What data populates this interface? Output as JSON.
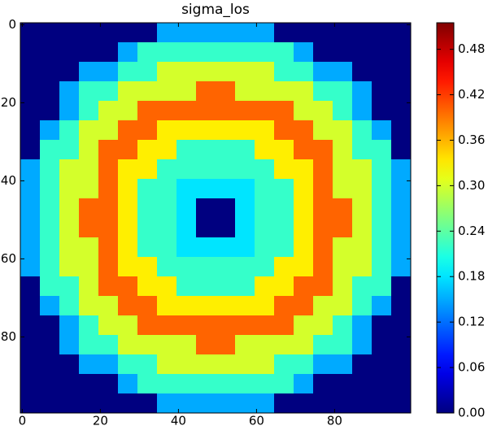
{
  "chart_data": {
    "type": "heatmap",
    "title": "sigma_los",
    "colormap": "jet",
    "xlim": [
      -0.5,
      99.5
    ],
    "ylim": [
      99.5,
      -0.5
    ],
    "xticks": [
      0,
      20,
      40,
      60,
      80
    ],
    "yticks": [
      0,
      20,
      40,
      60,
      80
    ],
    "clim": [
      0,
      0.515
    ],
    "cticks": [
      {
        "value": 0,
        "label": "0.00"
      },
      {
        "value": 0.06,
        "label": "0.06"
      },
      {
        "value": 0.12,
        "label": "0.12"
      },
      {
        "value": 0.18,
        "label": "0.18"
      },
      {
        "value": 0.24,
        "label": "0.24"
      },
      {
        "value": 0.3,
        "label": "0.30"
      },
      {
        "value": 0.36,
        "label": "0.36"
      },
      {
        "value": 0.42,
        "label": "0.42"
      },
      {
        "value": 0.48,
        "label": "0.48"
      }
    ],
    "z": [
      [
        0,
        0,
        0,
        0,
        0,
        0,
        0,
        0.15,
        0.15,
        0.15,
        0.15,
        0.15,
        0.15,
        0,
        0,
        0,
        0,
        0,
        0,
        0
      ],
      [
        0,
        0,
        0,
        0,
        0,
        0.15,
        0.22,
        0.22,
        0.22,
        0.22,
        0.22,
        0.22,
        0.22,
        0.22,
        0.15,
        0,
        0,
        0,
        0,
        0
      ],
      [
        0,
        0,
        0,
        0.15,
        0.15,
        0.22,
        0.22,
        0.3,
        0.3,
        0.3,
        0.3,
        0.3,
        0.3,
        0.22,
        0.22,
        0.15,
        0.15,
        0,
        0,
        0
      ],
      [
        0,
        0,
        0.15,
        0.22,
        0.22,
        0.3,
        0.3,
        0.3,
        0.3,
        0.4,
        0.4,
        0.3,
        0.3,
        0.3,
        0.3,
        0.22,
        0.22,
        0.15,
        0,
        0
      ],
      [
        0,
        0,
        0.15,
        0.22,
        0.3,
        0.3,
        0.4,
        0.4,
        0.4,
        0.4,
        0.4,
        0.4,
        0.4,
        0.4,
        0.3,
        0.3,
        0.22,
        0.15,
        0,
        0
      ],
      [
        0,
        0.15,
        0.22,
        0.3,
        0.3,
        0.4,
        0.4,
        0.33,
        0.33,
        0.33,
        0.33,
        0.33,
        0.33,
        0.4,
        0.4,
        0.3,
        0.3,
        0.22,
        0.15,
        0
      ],
      [
        0,
        0.22,
        0.22,
        0.3,
        0.4,
        0.4,
        0.33,
        0.33,
        0.22,
        0.22,
        0.22,
        0.22,
        0.33,
        0.33,
        0.4,
        0.4,
        0.3,
        0.22,
        0.22,
        0
      ],
      [
        0.15,
        0.22,
        0.3,
        0.3,
        0.4,
        0.33,
        0.33,
        0.22,
        0.22,
        0.22,
        0.22,
        0.22,
        0.22,
        0.33,
        0.33,
        0.4,
        0.3,
        0.3,
        0.22,
        0.15
      ],
      [
        0.15,
        0.22,
        0.3,
        0.3,
        0.4,
        0.33,
        0.22,
        0.22,
        0.18,
        0.18,
        0.18,
        0.18,
        0.22,
        0.22,
        0.33,
        0.4,
        0.3,
        0.3,
        0.22,
        0.15
      ],
      [
        0.15,
        0.22,
        0.3,
        0.4,
        0.4,
        0.33,
        0.22,
        0.22,
        0.18,
        0,
        0,
        0.18,
        0.22,
        0.22,
        0.33,
        0.4,
        0.4,
        0.3,
        0.22,
        0.15
      ],
      [
        0.15,
        0.22,
        0.3,
        0.4,
        0.4,
        0.33,
        0.22,
        0.22,
        0.18,
        0,
        0,
        0.18,
        0.22,
        0.22,
        0.33,
        0.4,
        0.4,
        0.3,
        0.22,
        0.15
      ],
      [
        0.15,
        0.22,
        0.3,
        0.3,
        0.4,
        0.33,
        0.22,
        0.22,
        0.18,
        0.18,
        0.18,
        0.18,
        0.22,
        0.22,
        0.33,
        0.4,
        0.3,
        0.3,
        0.22,
        0.15
      ],
      [
        0.15,
        0.22,
        0.3,
        0.3,
        0.4,
        0.33,
        0.33,
        0.22,
        0.22,
        0.22,
        0.22,
        0.22,
        0.22,
        0.33,
        0.33,
        0.4,
        0.3,
        0.3,
        0.22,
        0.15
      ],
      [
        0,
        0.22,
        0.22,
        0.3,
        0.4,
        0.4,
        0.33,
        0.33,
        0.22,
        0.22,
        0.22,
        0.22,
        0.33,
        0.33,
        0.4,
        0.4,
        0.3,
        0.22,
        0.22,
        0
      ],
      [
        0,
        0.15,
        0.22,
        0.3,
        0.3,
        0.4,
        0.4,
        0.33,
        0.33,
        0.33,
        0.33,
        0.33,
        0.33,
        0.4,
        0.4,
        0.3,
        0.3,
        0.22,
        0.15,
        0
      ],
      [
        0,
        0,
        0.15,
        0.22,
        0.3,
        0.3,
        0.4,
        0.4,
        0.4,
        0.4,
        0.4,
        0.4,
        0.4,
        0.4,
        0.3,
        0.3,
        0.22,
        0.15,
        0,
        0
      ],
      [
        0,
        0,
        0.15,
        0.22,
        0.22,
        0.3,
        0.3,
        0.3,
        0.3,
        0.4,
        0.4,
        0.3,
        0.3,
        0.3,
        0.3,
        0.22,
        0.22,
        0.15,
        0,
        0
      ],
      [
        0,
        0,
        0,
        0.15,
        0.15,
        0.22,
        0.22,
        0.3,
        0.3,
        0.3,
        0.3,
        0.3,
        0.3,
        0.22,
        0.22,
        0.15,
        0.15,
        0,
        0,
        0
      ],
      [
        0,
        0,
        0,
        0,
        0,
        0.15,
        0.22,
        0.22,
        0.22,
        0.22,
        0.22,
        0.22,
        0.22,
        0.22,
        0.15,
        0,
        0,
        0,
        0,
        0
      ],
      [
        0,
        0,
        0,
        0,
        0,
        0,
        0,
        0.15,
        0.15,
        0.15,
        0.15,
        0.15,
        0.15,
        0,
        0,
        0,
        0,
        0,
        0,
        0
      ]
    ]
  }
}
